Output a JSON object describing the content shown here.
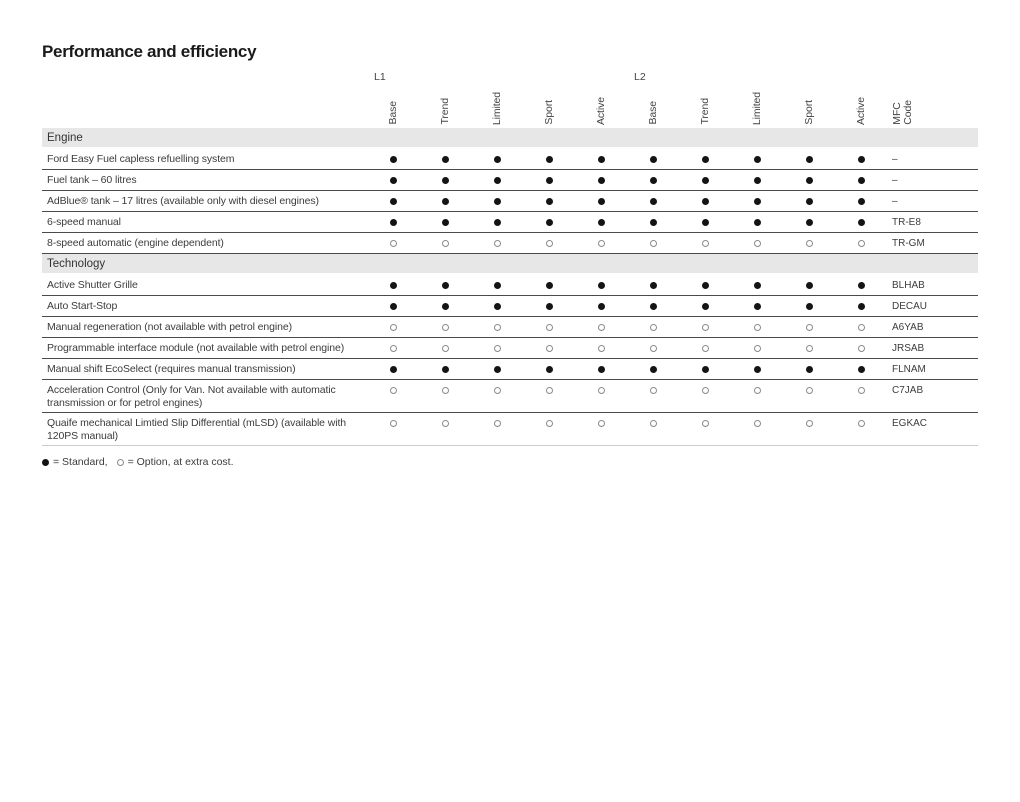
{
  "page": {
    "title": "Performance and efficiency",
    "legend": {
      "standard_label": "= Standard,",
      "option_label": "= Option, at extra cost."
    }
  },
  "table": {
    "group_headers": [
      "L1",
      "L2"
    ],
    "trim_columns": [
      "Base",
      "Trend",
      "Limited",
      "Sport",
      "Active",
      "Base",
      "Trend",
      "Limited",
      "Sport",
      "Active"
    ],
    "mfc_header": "MFC\nCode",
    "sections": [
      {
        "title": "Engine",
        "rows": [
          {
            "feature": "Ford Easy Fuel capless refuelling system",
            "markers": [
              "standard",
              "standard",
              "standard",
              "standard",
              "standard",
              "standard",
              "standard",
              "standard",
              "standard",
              "standard"
            ],
            "mfc": "–"
          },
          {
            "feature": "Fuel tank – 60 litres",
            "markers": [
              "standard",
              "standard",
              "standard",
              "standard",
              "standard",
              "standard",
              "standard",
              "standard",
              "standard",
              "standard"
            ],
            "mfc": "–"
          },
          {
            "feature": "AdBlue® tank – 17 litres (available only with diesel engines)",
            "markers": [
              "standard",
              "standard",
              "standard",
              "standard",
              "standard",
              "standard",
              "standard",
              "standard",
              "standard",
              "standard"
            ],
            "mfc": "–"
          },
          {
            "feature": "6-speed manual",
            "markers": [
              "standard",
              "standard",
              "standard",
              "standard",
              "standard",
              "standard",
              "standard",
              "standard",
              "standard",
              "standard"
            ],
            "mfc": "TR-E8"
          },
          {
            "feature": "8-speed automatic (engine dependent)",
            "markers": [
              "option",
              "option",
              "option",
              "option",
              "option",
              "option",
              "option",
              "option",
              "option",
              "option"
            ],
            "mfc": "TR-GM"
          }
        ]
      },
      {
        "title": "Technology",
        "rows": [
          {
            "feature": "Active Shutter Grille",
            "markers": [
              "standard",
              "standard",
              "standard",
              "standard",
              "standard",
              "standard",
              "standard",
              "standard",
              "standard",
              "standard"
            ],
            "mfc": "BLHAB"
          },
          {
            "feature": "Auto Start-Stop",
            "markers": [
              "standard",
              "standard",
              "standard",
              "standard",
              "standard",
              "standard",
              "standard",
              "standard",
              "standard",
              "standard"
            ],
            "mfc": "DECAU"
          },
          {
            "feature": "Manual regeneration (not available with petrol engine)",
            "markers": [
              "option",
              "option",
              "option",
              "option",
              "option",
              "option",
              "option",
              "option",
              "option",
              "option"
            ],
            "mfc": "A6YAB"
          },
          {
            "feature": "Programmable interface module (not available with petrol engine)",
            "markers": [
              "option",
              "option",
              "option",
              "option",
              "option",
              "option",
              "option",
              "option",
              "option",
              "option"
            ],
            "mfc": "JRSAB"
          },
          {
            "feature": "Manual shift EcoSelect (requires manual transmission)",
            "markers": [
              "standard",
              "standard",
              "standard",
              "standard",
              "standard",
              "standard",
              "standard",
              "standard",
              "standard",
              "standard"
            ],
            "mfc": "FLNAM"
          },
          {
            "feature": "Acceleration Control (Only for Van. Not available with automatic transmission or for petrol engines)",
            "markers": [
              "option",
              "option",
              "option",
              "option",
              "option",
              "option",
              "option",
              "option",
              "option",
              "option"
            ],
            "mfc": "C7JAB"
          },
          {
            "feature": "Quaife mechanical Limtied Slip Differential (mLSD) (available with 120PS manual)",
            "markers": [
              "option",
              "option",
              "option",
              "option",
              "option",
              "option",
              "option",
              "option",
              "option",
              "option"
            ],
            "mfc": "EGKAC"
          }
        ]
      }
    ]
  }
}
